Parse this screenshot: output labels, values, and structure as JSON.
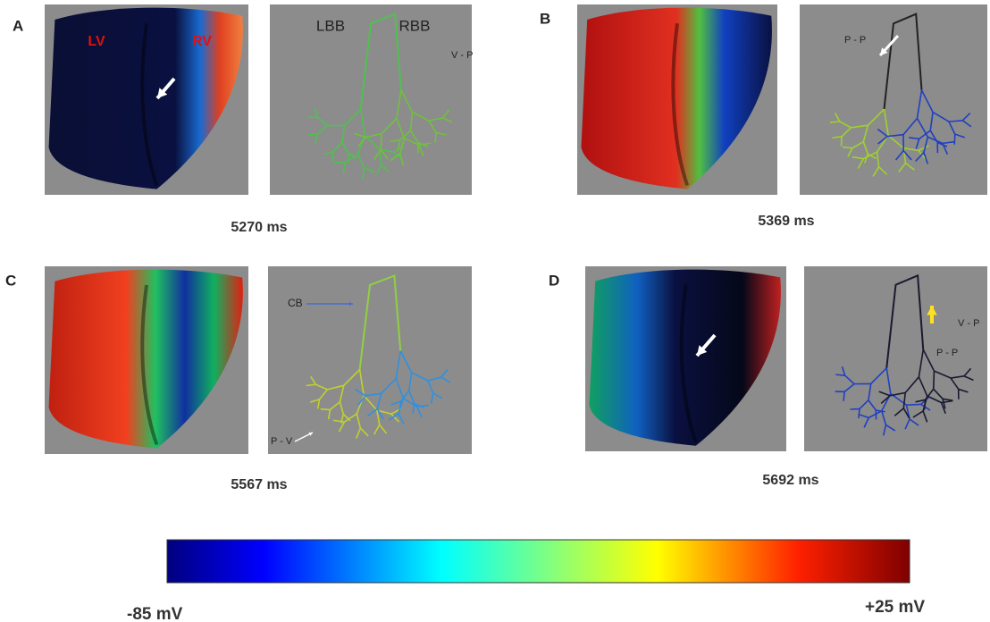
{
  "panels": [
    {
      "letter": "A",
      "time": "5270 ms",
      "labels": [
        "LV",
        "RV",
        "LBB",
        "RBB",
        "V - P"
      ]
    },
    {
      "letter": "B",
      "time": "5369 ms",
      "labels": [
        "P - P"
      ]
    },
    {
      "letter": "C",
      "time": "5567 ms",
      "labels": [
        "CB",
        "P - V"
      ]
    },
    {
      "letter": "D",
      "time": "5692 ms",
      "labels": [
        "V - P",
        "P - P"
      ]
    }
  ],
  "colorbar": {
    "min_label": "-85 mV",
    "max_label": "+25 mV"
  }
}
